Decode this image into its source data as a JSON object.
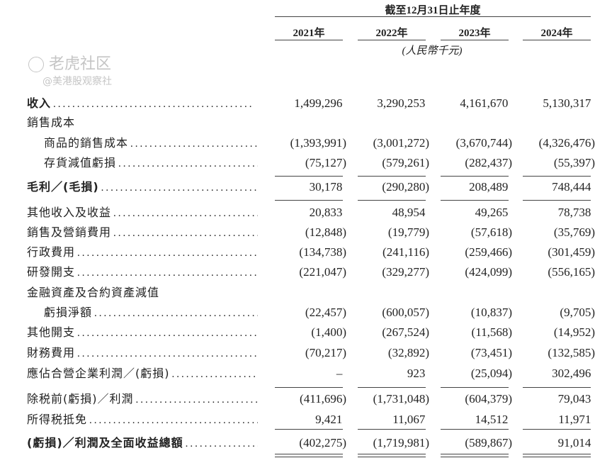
{
  "header": {
    "period": "截至12月31日止年度",
    "years": [
      "2021年",
      "2022年",
      "2023年",
      "2024年"
    ],
    "unit": "(人民幣千元)"
  },
  "rows": [
    {
      "label": "收入",
      "bold": true,
      "values": [
        "1,499,296",
        "3,290,253",
        "4,161,670",
        "5,130,317"
      ]
    },
    {
      "label": "銷售成本",
      "values": []
    },
    {
      "label": "商品的銷售成本",
      "indent": true,
      "values": [
        "(1,393,991)",
        "(3,001,272)",
        "(3,670,744)",
        "(4,326,476)"
      ]
    },
    {
      "label": "存貨減值虧損",
      "indent": true,
      "values": [
        "(75,127)",
        "(579,261)",
        "(282,437)",
        "(55,397)"
      ]
    },
    {
      "label": "毛利／(毛損)",
      "bold": true,
      "values": [
        "30,178",
        "(290,280)",
        "208,489",
        "748,444"
      ]
    },
    {
      "label": "其他收入及收益",
      "values": [
        "20,833",
        "48,954",
        "49,265",
        "78,738"
      ]
    },
    {
      "label": "銷售及營銷費用",
      "values": [
        "(12,848)",
        "(19,779)",
        "(57,618)",
        "(35,769)"
      ]
    },
    {
      "label": "行政費用",
      "values": [
        "(134,738)",
        "(241,116)",
        "(259,466)",
        "(301,459)"
      ]
    },
    {
      "label": "研發開支",
      "values": [
        "(221,047)",
        "(329,277)",
        "(424,099)",
        "(556,165)"
      ]
    },
    {
      "label": "金融資產及合約資產減值",
      "values": []
    },
    {
      "label": "虧損淨額",
      "indent": true,
      "values": [
        "(22,457)",
        "(600,057)",
        "(10,837)",
        "(9,705)"
      ]
    },
    {
      "label": "其他開支",
      "values": [
        "(1,400)",
        "(267,524)",
        "(11,568)",
        "(14,952)"
      ]
    },
    {
      "label": "財務費用",
      "values": [
        "(70,217)",
        "(32,892)",
        "(73,451)",
        "(132,585)"
      ]
    },
    {
      "label": "應佔合營企業利潤／(虧損)",
      "values": [
        "–",
        "923",
        "(25,094)",
        "302,496"
      ]
    },
    {
      "label": "除税前(虧損)／利潤",
      "values": [
        "(411,696)",
        "(1,731,048)",
        "(604,379)",
        "79,043"
      ]
    },
    {
      "label": "所得税抵免",
      "values": [
        "9,421",
        "11,067",
        "14,512",
        "11,971"
      ]
    },
    {
      "label": "(虧損)／利潤及全面收益總額",
      "bold": true,
      "values": [
        "(402,275)",
        "(1,719,981)",
        "(589,867)",
        "91,014"
      ]
    }
  ],
  "watermark": {
    "text1": "老虎社区",
    "text2": "@美港股观察社"
  }
}
